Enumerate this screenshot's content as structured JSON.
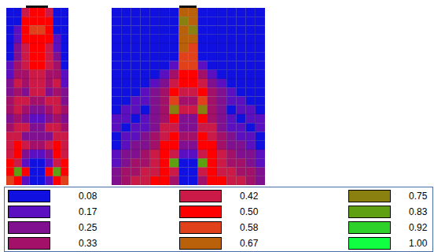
{
  "chart_data": {
    "type": "heatmap",
    "tick_labels": false,
    "panels": [
      {
        "cells": [
          [
            0.08,
            0.08,
            0.42,
            0.5,
            0.5,
            0.42,
            0.08,
            0.08
          ],
          [
            0.08,
            0.08,
            0.5,
            0.5,
            0.5,
            0.5,
            0.08,
            0.08
          ],
          [
            0.08,
            0.17,
            0.5,
            0.58,
            0.58,
            0.5,
            0.08,
            0.08
          ],
          [
            0.08,
            0.17,
            0.5,
            0.5,
            0.5,
            0.5,
            0.17,
            0.08
          ],
          [
            0.08,
            0.25,
            0.42,
            0.5,
            0.5,
            0.42,
            0.17,
            0.08
          ],
          [
            0.08,
            0.25,
            0.42,
            0.5,
            0.5,
            0.42,
            0.25,
            0.08
          ],
          [
            0.17,
            0.33,
            0.42,
            0.5,
            0.5,
            0.42,
            0.33,
            0.08
          ],
          [
            0.17,
            0.33,
            0.33,
            0.42,
            0.42,
            0.33,
            0.33,
            0.17
          ],
          [
            0.25,
            0.42,
            0.33,
            0.42,
            0.42,
            0.33,
            0.42,
            0.17
          ],
          [
            0.25,
            0.33,
            0.25,
            0.42,
            0.42,
            0.25,
            0.33,
            0.25
          ],
          [
            0.33,
            0.42,
            0.42,
            0.33,
            0.33,
            0.42,
            0.42,
            0.25
          ],
          [
            0.33,
            0.42,
            0.33,
            0.25,
            0.25,
            0.33,
            0.42,
            0.33
          ],
          [
            0.25,
            0.33,
            0.25,
            0.17,
            0.17,
            0.25,
            0.33,
            0.25
          ],
          [
            0.33,
            0.42,
            0.42,
            0.25,
            0.25,
            0.42,
            0.42,
            0.33
          ],
          [
            0.42,
            0.42,
            0.25,
            0.25,
            0.25,
            0.25,
            0.42,
            0.42
          ],
          [
            0.42,
            0.5,
            0.42,
            0.33,
            0.33,
            0.42,
            0.5,
            0.42
          ],
          [
            0.42,
            0.5,
            0.25,
            0.17,
            0.17,
            0.25,
            0.5,
            0.42
          ],
          [
            0.5,
            0.42,
            0.17,
            0.08,
            0.08,
            0.17,
            0.42,
            0.5
          ],
          [
            0.5,
            0.83,
            0.5,
            0.08,
            0.08,
            0.5,
            0.83,
            0.5
          ],
          [
            0.58,
            0.5,
            0.17,
            0.08,
            0.08,
            0.17,
            0.5,
            0.58
          ]
        ]
      },
      {
        "cells": [
          [
            0.08,
            0.08,
            0.08,
            0.08,
            0.08,
            0.08,
            0.08,
            0.67,
            0.67,
            0.08,
            0.08,
            0.08,
            0.08,
            0.08,
            0.08,
            0.08
          ],
          [
            0.08,
            0.08,
            0.08,
            0.08,
            0.08,
            0.08,
            0.08,
            0.75,
            0.67,
            0.08,
            0.08,
            0.08,
            0.08,
            0.08,
            0.08,
            0.08
          ],
          [
            0.08,
            0.08,
            0.08,
            0.08,
            0.08,
            0.08,
            0.08,
            0.67,
            0.75,
            0.08,
            0.08,
            0.08,
            0.08,
            0.08,
            0.08,
            0.08
          ],
          [
            0.08,
            0.08,
            0.08,
            0.08,
            0.08,
            0.08,
            0.08,
            0.67,
            0.67,
            0.08,
            0.08,
            0.08,
            0.08,
            0.08,
            0.08,
            0.08
          ],
          [
            0.08,
            0.08,
            0.08,
            0.08,
            0.08,
            0.08,
            0.08,
            0.67,
            0.58,
            0.08,
            0.08,
            0.08,
            0.08,
            0.08,
            0.08,
            0.08
          ],
          [
            0.08,
            0.08,
            0.08,
            0.08,
            0.08,
            0.08,
            0.08,
            0.58,
            0.58,
            0.08,
            0.08,
            0.08,
            0.08,
            0.08,
            0.08,
            0.08
          ],
          [
            0.08,
            0.08,
            0.08,
            0.08,
            0.08,
            0.08,
            0.17,
            0.58,
            0.58,
            0.17,
            0.08,
            0.08,
            0.08,
            0.08,
            0.08,
            0.08
          ],
          [
            0.08,
            0.08,
            0.08,
            0.08,
            0.08,
            0.17,
            0.33,
            0.5,
            0.5,
            0.33,
            0.17,
            0.08,
            0.08,
            0.08,
            0.08,
            0.08
          ],
          [
            0.08,
            0.08,
            0.08,
            0.08,
            0.17,
            0.25,
            0.42,
            0.5,
            0.5,
            0.42,
            0.25,
            0.17,
            0.08,
            0.08,
            0.08,
            0.08
          ],
          [
            0.08,
            0.08,
            0.08,
            0.17,
            0.25,
            0.33,
            0.5,
            0.42,
            0.42,
            0.5,
            0.33,
            0.25,
            0.17,
            0.08,
            0.08,
            0.08
          ],
          [
            0.08,
            0.08,
            0.17,
            0.17,
            0.25,
            0.33,
            0.58,
            0.33,
            0.33,
            0.58,
            0.33,
            0.25,
            0.17,
            0.17,
            0.08,
            0.08
          ],
          [
            0.08,
            0.17,
            0.17,
            0.08,
            0.25,
            0.33,
            0.75,
            0.42,
            0.42,
            0.75,
            0.33,
            0.25,
            0.08,
            0.17,
            0.17,
            0.08
          ],
          [
            0.17,
            0.17,
            0.08,
            0.17,
            0.25,
            0.33,
            0.5,
            0.25,
            0.25,
            0.5,
            0.33,
            0.25,
            0.17,
            0.08,
            0.17,
            0.17
          ],
          [
            0.17,
            0.08,
            0.17,
            0.17,
            0.25,
            0.42,
            0.42,
            0.25,
            0.25,
            0.42,
            0.42,
            0.25,
            0.17,
            0.17,
            0.08,
            0.17
          ],
          [
            0.08,
            0.17,
            0.17,
            0.25,
            0.33,
            0.42,
            0.5,
            0.33,
            0.33,
            0.5,
            0.42,
            0.33,
            0.25,
            0.17,
            0.17,
            0.08
          ],
          [
            0.08,
            0.17,
            0.25,
            0.25,
            0.33,
            0.5,
            0.5,
            0.25,
            0.25,
            0.5,
            0.5,
            0.33,
            0.25,
            0.25,
            0.17,
            0.08
          ],
          [
            0.17,
            0.25,
            0.25,
            0.33,
            0.42,
            0.5,
            0.42,
            0.17,
            0.17,
            0.42,
            0.5,
            0.42,
            0.33,
            0.25,
            0.25,
            0.17
          ],
          [
            0.17,
            0.25,
            0.33,
            0.33,
            0.42,
            0.5,
            0.83,
            0.08,
            0.08,
            0.83,
            0.5,
            0.42,
            0.33,
            0.33,
            0.25,
            0.17
          ],
          [
            0.25,
            0.33,
            0.33,
            0.42,
            0.42,
            0.5,
            0.42,
            0.08,
            0.08,
            0.42,
            0.5,
            0.42,
            0.42,
            0.33,
            0.33,
            0.25
          ],
          [
            0.25,
            0.33,
            0.42,
            0.42,
            0.5,
            0.5,
            0.33,
            0.08,
            0.08,
            0.33,
            0.5,
            0.5,
            0.42,
            0.42,
            0.33,
            0.25
          ]
        ]
      }
    ],
    "color_bar": {
      "ticks": [
        0.08,
        0.17,
        0.25,
        0.33,
        0.42,
        {
          "value": 0.5,
          "label": "0.50"
        },
        0.58,
        0.67,
        0.75,
        0.83,
        0.92,
        {
          "value": 1,
          "label": "1.00"
        }
      ],
      "colors": [
        "#1010E0",
        "#5B0FC0",
        "#80108F",
        "#A3106A",
        "#CC1A48",
        "#FF0000",
        "#E0401A",
        "#B8600A",
        "#8A8010",
        "#5EA012",
        "#2ED02A",
        "#10FF40"
      ]
    }
  }
}
